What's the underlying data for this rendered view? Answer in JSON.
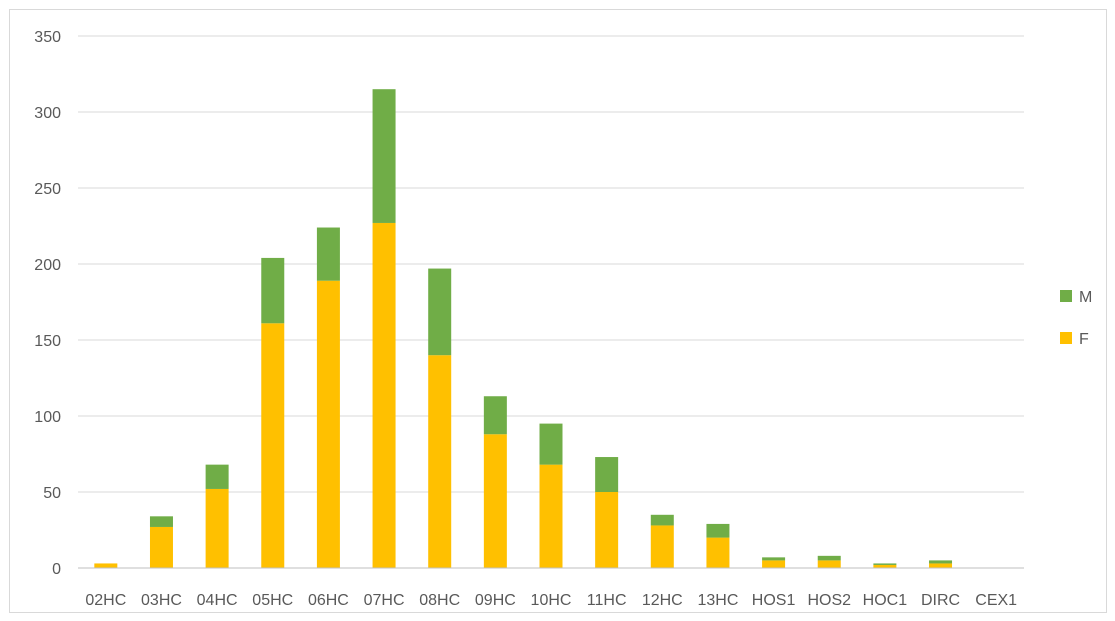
{
  "chart_data": {
    "type": "bar",
    "stacked": true,
    "categories": [
      "02HC",
      "03HC",
      "04HC",
      "05HC",
      "06HC",
      "07HC",
      "08HC",
      "09HC",
      "10HC",
      "11HC",
      "12HC",
      "13HC",
      "HOS1",
      "HOS2",
      "HOC1",
      "DIRC",
      "CEX1"
    ],
    "series": [
      {
        "name": "F",
        "color": "#FFC000",
        "values": [
          3,
          27,
          52,
          161,
          189,
          227,
          140,
          88,
          68,
          50,
          28,
          20,
          5,
          5,
          2,
          3,
          0
        ]
      },
      {
        "name": "M",
        "color": "#70AD47",
        "values": [
          0,
          7,
          16,
          43,
          35,
          88,
          57,
          25,
          27,
          23,
          7,
          9,
          2,
          3,
          1,
          2,
          0
        ]
      }
    ],
    "yticks": [
      "0",
      "50",
      "100",
      "150",
      "200",
      "250",
      "300",
      "350"
    ],
    "ylim": [
      0,
      350
    ],
    "grid": true,
    "legend_position": "right",
    "legend_order": [
      "M",
      "F"
    ]
  }
}
